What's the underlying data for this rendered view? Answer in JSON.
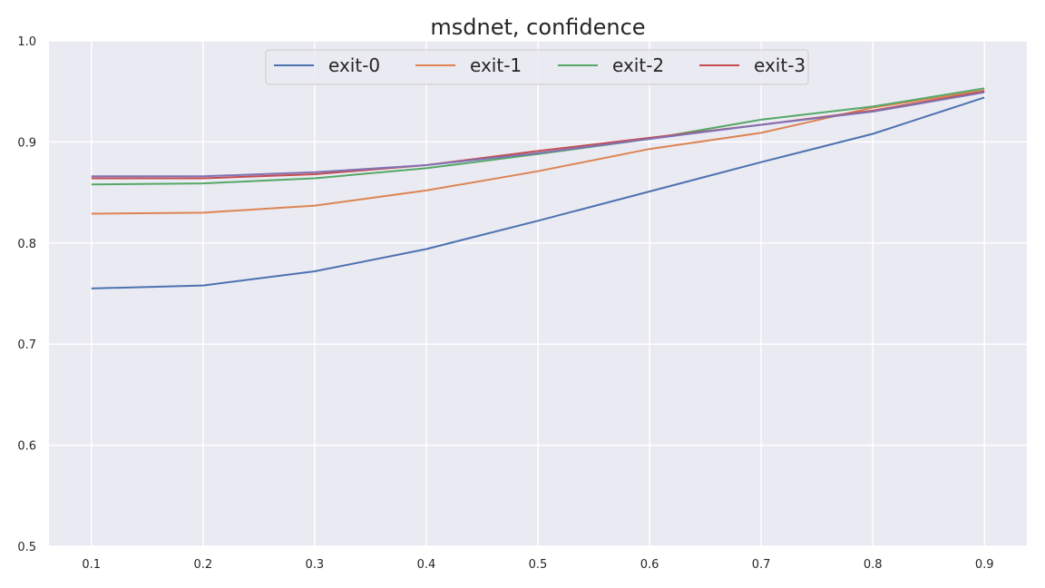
{
  "chart_data": {
    "type": "line",
    "title": "msdnet, confidence",
    "xlabel": "",
    "ylabel": "",
    "x": [
      0.1,
      0.2,
      0.3,
      0.4,
      0.5,
      0.6,
      0.7,
      0.8,
      0.9
    ],
    "x_tick_labels": [
      "0.1",
      "0.2",
      "0.3",
      "0.4",
      "0.5",
      "0.6",
      "0.7",
      "0.8",
      "0.9"
    ],
    "y_tick_labels": [
      "0.5",
      "0.6",
      "0.7",
      "0.8",
      "0.9",
      "1.0"
    ],
    "y_ticks": [
      0.5,
      0.6,
      0.7,
      0.8,
      0.9,
      1.0
    ],
    "xlim": [
      0.062,
      0.938
    ],
    "ylim": [
      0.5,
      1.0
    ],
    "grid": true,
    "legend_position": "top-center",
    "background_color": "#eaeaf2",
    "grid_color": "#ffffff",
    "series": [
      {
        "name": "exit-0",
        "color": "#4c72b0",
        "in_legend": true,
        "values": [
          0.755,
          0.758,
          0.772,
          0.794,
          0.822,
          0.851,
          0.88,
          0.908,
          0.944
        ]
      },
      {
        "name": "exit-1",
        "color": "#dd8452",
        "in_legend": true,
        "values": [
          0.829,
          0.83,
          0.837,
          0.852,
          0.871,
          0.893,
          0.909,
          0.934,
          0.951
        ]
      },
      {
        "name": "exit-2",
        "color": "#55a868",
        "in_legend": true,
        "values": [
          0.858,
          0.859,
          0.864,
          0.874,
          0.888,
          0.903,
          0.922,
          0.935,
          0.953
        ]
      },
      {
        "name": "exit-3",
        "color": "#c44e52",
        "in_legend": true,
        "values": [
          0.864,
          0.864,
          0.868,
          0.877,
          0.891,
          0.904,
          0.917,
          0.931,
          0.95
        ]
      },
      {
        "name": "",
        "color": "#8172b3",
        "in_legend": false,
        "values": [
          0.866,
          0.866,
          0.87,
          0.877,
          0.889,
          0.903,
          0.917,
          0.93,
          0.949
        ]
      }
    ]
  }
}
